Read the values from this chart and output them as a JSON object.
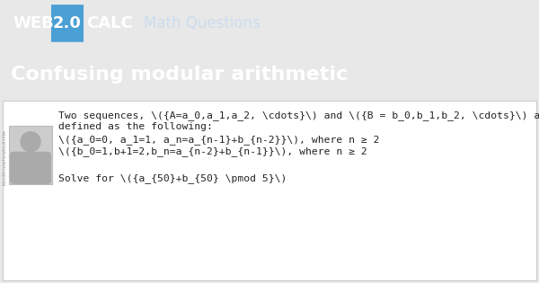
{
  "header_bg": "#3d4f5e",
  "badge_bg": "#4a9fd4",
  "title_section_bg": "#3d4f5e",
  "content_bg": "#ffffff",
  "page_bg": "#e8e8e8",
  "header_text_web": "WEB",
  "header_text_20": "2.0",
  "header_text_calc": "CALC",
  "header_subtitle": "Math Questions",
  "title": "Confusing modular arithmetic",
  "line1": "Two sequences, \\({A=a_0,a_1,a_2, \\cdots}\\) and \\({B = b_0,b_1,b_2, \\cdots}\\) a",
  "line2": "defined as the following:",
  "line3": "\\({a_0=0, a_1=1, a_n=a_{n-1}+b_{n-2}}\\), where n ≥ 2",
  "line4": "\\({b_0=1,b+1=2,b_n=a_{n-2}+b_{n-1}}\\), where n ≥ 2",
  "line5": "Solve for \\({a_{50}+b_{50} \\pmod 5}\\)",
  "sidebar_text": "idontknowhowtodivide",
  "avatar_bg": "#cccccc",
  "avatar_circle": "#aaaaaa",
  "avatar_body": "#aaaaaa",
  "header_fontsize": 13,
  "title_fontsize": 16,
  "body_fontsize": 8.2,
  "sidebar_fontsize": 4.0
}
